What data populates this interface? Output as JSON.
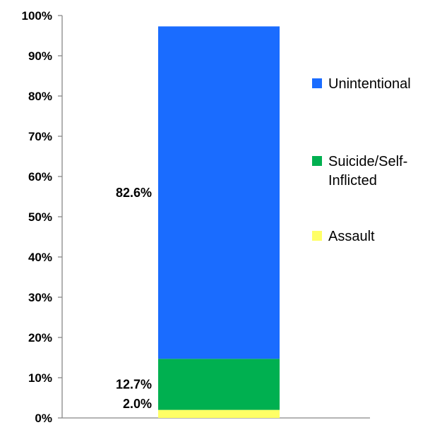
{
  "chart_data": {
    "type": "bar",
    "stacked": true,
    "categories": [
      ""
    ],
    "series": [
      {
        "name": "Assault",
        "values": [
          2.0
        ],
        "label": "2.0%",
        "color": "#ffff66"
      },
      {
        "name": "Suicide/Self-Inflicted",
        "values": [
          12.7
        ],
        "label": "12.7%",
        "color": "#00b050"
      },
      {
        "name": "Unintentional",
        "values": [
          82.6
        ],
        "label": "82.6%",
        "color": "#1a6cff"
      }
    ],
    "legend": {
      "position": "right",
      "items": [
        {
          "lines": [
            "Unintentional"
          ],
          "color": "#1a6cff"
        },
        {
          "lines": [
            "Suicide/Self-",
            "Inflicted"
          ],
          "color": "#00b050"
        },
        {
          "lines": [
            "Assault"
          ],
          "color": "#ffff66"
        }
      ]
    },
    "ylim": [
      0,
      100
    ],
    "yticks": [
      "0%",
      "10%",
      "20%",
      "30%",
      "40%",
      "50%",
      "60%",
      "70%",
      "80%",
      "90%",
      "100%"
    ],
    "grid": false
  }
}
